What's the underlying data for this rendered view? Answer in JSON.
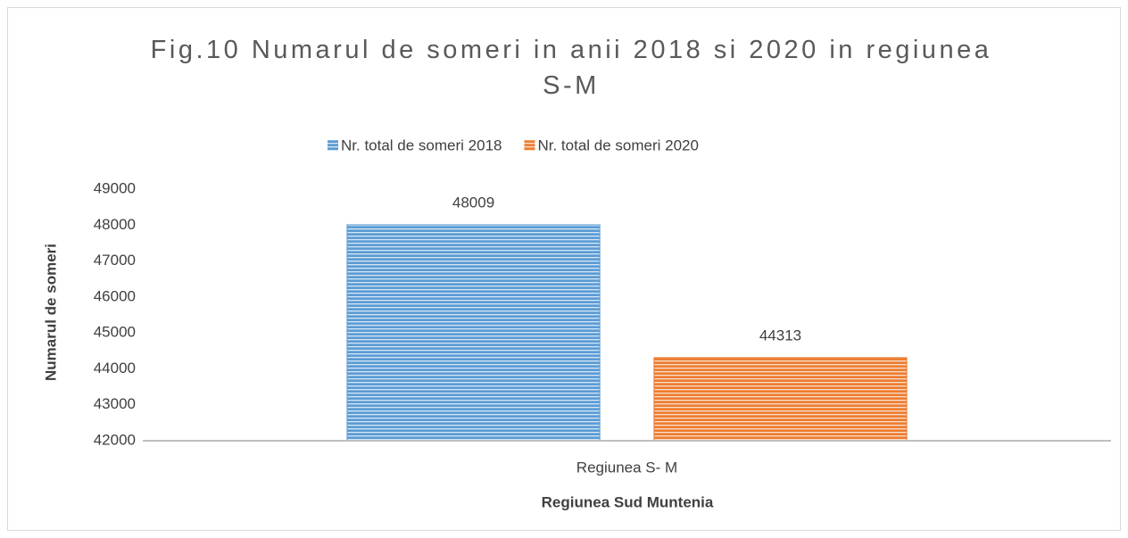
{
  "chart_data": {
    "type": "bar",
    "title": "Fig.10 Numarul de someri in anii 2018 si 2020 in regiunea S-M",
    "x_label": "Regiunea Sud Muntenia",
    "y_label": "Numarul de someri",
    "categories": [
      "Regiunea S- M"
    ],
    "series": [
      {
        "name": "Nr. total de someri 2018",
        "color": "#5b9bd5",
        "values": [
          48009
        ]
      },
      {
        "name": "Nr. total de someri 2020",
        "color": "#ed7d31",
        "values": [
          44313
        ]
      }
    ],
    "ylim": [
      42000,
      49000
    ],
    "yticks": [
      42000,
      43000,
      44000,
      45000,
      46000,
      47000,
      48000,
      49000
    ],
    "grid": false,
    "legend": "top"
  }
}
